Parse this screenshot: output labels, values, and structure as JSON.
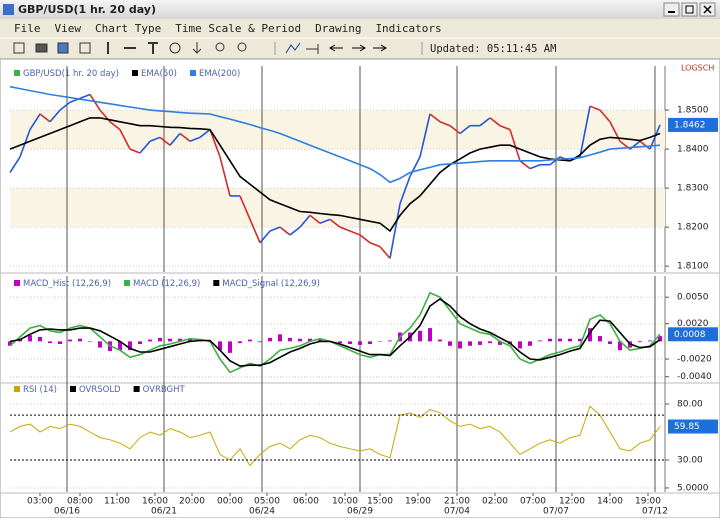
{
  "window": {
    "title": "GBP/USD(1 hr. 20 day)",
    "menu": [
      "File",
      "View",
      "Chart Type",
      "Time Scale & Period",
      "Drawing",
      "Indicators"
    ],
    "updated": "Updated: 05:11:45 AM"
  },
  "chart_data": [
    {
      "type": "line",
      "top_right_label": "LOGSCH",
      "stripes": true,
      "series": [
        {
          "name": "GBP/USD(1 hr. 20 day)",
          "color": "#2456d6",
          "down_color": "#d42a2a",
          "legend_color": "#3cb043",
          "values": [
            1.834,
            1.838,
            1.845,
            1.849,
            1.847,
            1.85,
            1.852,
            1.853,
            1.854,
            1.85,
            1.847,
            1.845,
            1.84,
            1.839,
            1.842,
            1.843,
            1.841,
            1.844,
            1.842,
            1.843,
            1.845,
            1.838,
            1.828,
            1.828,
            1.822,
            1.816,
            1.819,
            1.82,
            1.818,
            1.82,
            1.823,
            1.821,
            1.822,
            1.82,
            1.819,
            1.818,
            1.816,
            1.815,
            1.812,
            1.826,
            1.833,
            1.838,
            1.849,
            1.847,
            1.846,
            1.844,
            1.846,
            1.846,
            1.848,
            1.846,
            1.845,
            1.837,
            1.835,
            1.836,
            1.836,
            1.838,
            1.837,
            1.838,
            1.851,
            1.85,
            1.847,
            1.842,
            1.84,
            1.842,
            1.84,
            1.8462
          ]
        },
        {
          "name": "EMA(50)",
          "color": "#000000",
          "values": [
            1.84,
            1.841,
            1.842,
            1.843,
            1.844,
            1.845,
            1.846,
            1.847,
            1.848,
            1.848,
            1.8475,
            1.847,
            1.8465,
            1.846,
            1.846,
            1.8458,
            1.8456,
            1.8455,
            1.8453,
            1.8452,
            1.845,
            1.841,
            1.837,
            1.833,
            1.831,
            1.829,
            1.827,
            1.826,
            1.825,
            1.824,
            1.8238,
            1.8235,
            1.8232,
            1.823,
            1.8225,
            1.822,
            1.8215,
            1.821,
            1.819,
            1.823,
            1.826,
            1.828,
            1.831,
            1.834,
            1.836,
            1.8375,
            1.839,
            1.84,
            1.8405,
            1.841,
            1.841,
            1.84,
            1.839,
            1.838,
            1.8375,
            1.8372,
            1.837,
            1.8385,
            1.841,
            1.8425,
            1.843,
            1.8428,
            1.8425,
            1.8422,
            1.843,
            1.844
          ]
        },
        {
          "name": "EMA(200)",
          "color": "#2f7fe0",
          "values": [
            1.856,
            1.8555,
            1.855,
            1.8545,
            1.854,
            1.8536,
            1.8532,
            1.8528,
            1.8524,
            1.852,
            1.8516,
            1.8512,
            1.8508,
            1.8504,
            1.85,
            1.8498,
            1.8496,
            1.8494,
            1.8492,
            1.8491,
            1.849,
            1.8483,
            1.8477,
            1.847,
            1.8463,
            1.8455,
            1.8448,
            1.844,
            1.843,
            1.842,
            1.841,
            1.84,
            1.839,
            1.838,
            1.837,
            1.836,
            1.835,
            1.8335,
            1.8315,
            1.8325,
            1.834,
            1.8347,
            1.8353,
            1.836,
            1.8362,
            1.8364,
            1.8366,
            1.8368,
            1.837,
            1.837,
            1.837,
            1.837,
            1.837,
            1.837,
            1.8372,
            1.8374,
            1.8376,
            1.8378,
            1.8385,
            1.8392,
            1.84,
            1.8402,
            1.8404,
            1.8406,
            1.8408,
            1.841
          ]
        }
      ],
      "ylim": [
        1.8085,
        1.8613
      ],
      "yticks": [
        {
          "value": 1.85,
          "label": "1.8500"
        },
        {
          "value": 1.84,
          "label": "1.8400"
        },
        {
          "value": 1.83,
          "label": "1.8300"
        },
        {
          "value": 1.82,
          "label": "1.8200"
        },
        {
          "value": 1.81,
          "label": "1.8100"
        }
      ],
      "last_value": {
        "value": 1.8462,
        "label": "1.8462"
      }
    },
    {
      "type": "line",
      "series": [
        {
          "name": "MACD_Hist (12,26,9)",
          "color": "#c000c0",
          "kind": "bar",
          "values": [
            -0.0005,
            0.0003,
            0.0007,
            0.0005,
            -0.0002,
            -0.0003,
            0.0002,
            0.0003,
            0,
            -0.0007,
            -0.0011,
            -0.001,
            -0.001,
            -0.0003,
            0.0002,
            0.0004,
            0.0003,
            0.0003,
            0.0003,
            0.0001,
            -0.0001,
            -0.001,
            -0.0013,
            -0.0002,
            0.0002,
            -0.0001,
            0.0004,
            0.0008,
            0.0004,
            0.0003,
            0.0003,
            0.0003,
            0,
            -0.0002,
            -0.0003,
            -0.0004,
            -0.0003,
            0,
            0.0001,
            0.001,
            0.001,
            0.0012,
            0.0015,
            0.0002,
            -0.0005,
            -0.0008,
            -0.0005,
            -0.0004,
            -0.0002,
            -0.0004,
            -0.0003,
            -0.0008,
            -0.0005,
            0.0001,
            0.0003,
            0.0003,
            0.0003,
            0.0003,
            0.0015,
            0.0006,
            -0.0003,
            -0.001,
            -0.0007,
            -0.0001,
            0.0001,
            0.0006
          ]
        },
        {
          "name": "MACD (12,26,9)",
          "color": "#3cb043",
          "values": [
            -0.0005,
            0.0005,
            0.0015,
            0.0018,
            0.0012,
            0.001,
            0.0015,
            0.0018,
            0.0015,
            0.0005,
            -0.0005,
            -0.001,
            -0.0018,
            -0.0015,
            -0.001,
            -0.0005,
            -0.0003,
            0,
            0.0003,
            0.0002,
            0,
            -0.002,
            -0.0035,
            -0.003,
            -0.0025,
            -0.0028,
            -0.002,
            -0.001,
            -0.0008,
            -0.0005,
            0,
            0.0003,
            0,
            -0.0005,
            -0.001,
            -0.0015,
            -0.0018,
            -0.0015,
            -0.0015,
            0.0005,
            0.0015,
            0.003,
            0.0055,
            0.005,
            0.0035,
            0.002,
            0.0015,
            0.001,
            0.0008,
            0,
            -0.0005,
            -0.002,
            -0.0025,
            -0.002,
            -0.0015,
            -0.0012,
            -0.0008,
            -0.0005,
            0.0025,
            0.003,
            0.002,
            0,
            -0.001,
            -0.0008,
            -0.0005,
            0.0008
          ]
        },
        {
          "name": "MACD_Signal (12,26,9)",
          "color": "#000000",
          "values": [
            0,
            0.0002,
            0.0008,
            0.0013,
            0.0014,
            0.0013,
            0.0013,
            0.0015,
            0.0015,
            0.0012,
            0.0006,
            0,
            -0.0008,
            -0.0012,
            -0.0012,
            -0.0009,
            -0.0006,
            -0.0003,
            0,
            0.0001,
            0.0001,
            -0.001,
            -0.0022,
            -0.0028,
            -0.0027,
            -0.0027,
            -0.0024,
            -0.0018,
            -0.0012,
            -0.0008,
            -0.0003,
            0,
            0,
            -0.0003,
            -0.0007,
            -0.0011,
            -0.0015,
            -0.0015,
            -0.0016,
            -0.0005,
            0.0005,
            0.0018,
            0.004,
            0.0048,
            0.004,
            0.0028,
            0.002,
            0.0014,
            0.001,
            0.0004,
            -0.0002,
            -0.0012,
            -0.002,
            -0.0021,
            -0.0018,
            -0.0015,
            -0.0011,
            -0.0008,
            0.001,
            0.0024,
            0.0023,
            0.001,
            -0.0003,
            -0.0007,
            -0.0006,
            0.0002
          ]
        }
      ],
      "ylim": [
        -0.0046,
        0.0074
      ],
      "yticks": [
        {
          "value": 0.005,
          "label": "0.0050"
        },
        {
          "value": 0.002,
          "label": "0.0020"
        },
        {
          "value": -0.002,
          "label": "-0.0020"
        },
        {
          "value": -0.004,
          "label": "-0.0040"
        }
      ],
      "last_value": {
        "value": 0.0008,
        "label": "0.0008"
      }
    },
    {
      "type": "line",
      "series": [
        {
          "name": "RSI (14)",
          "color": "#c8a800",
          "values": [
            55,
            60,
            62,
            55,
            60,
            58,
            62,
            60,
            55,
            50,
            48,
            45,
            40,
            50,
            55,
            52,
            58,
            55,
            50,
            52,
            55,
            35,
            30,
            40,
            25,
            35,
            42,
            45,
            40,
            48,
            52,
            50,
            45,
            42,
            40,
            38,
            40,
            35,
            32,
            70,
            72,
            68,
            75,
            72,
            65,
            60,
            62,
            58,
            60,
            55,
            45,
            35,
            40,
            45,
            48,
            45,
            50,
            52,
            78,
            70,
            55,
            40,
            38,
            45,
            48,
            59.85
          ]
        },
        {
          "name": "OVRSOLD",
          "color": "#000000",
          "level": 30
        },
        {
          "name": "OVRBGHT",
          "color": "#000000",
          "level": 70
        }
      ],
      "ylim": [
        1.4,
        99.6
      ],
      "yticks": [
        {
          "value": 80,
          "label": "80.00"
        },
        {
          "value": 30,
          "label": "30.00"
        },
        {
          "value": 5,
          "label": "5.0000"
        }
      ],
      "last_value": {
        "value": 59.85,
        "label": "59.85"
      },
      "xlim": [
        0,
        65.5
      ],
      "xticks": [
        {
          "value": 3,
          "label": "03:00"
        },
        {
          "value": 7,
          "label": "08:00"
        },
        {
          "value": 10.7,
          "label": "11:00"
        },
        {
          "value": 14.5,
          "label": "16:00"
        },
        {
          "value": 18.2,
          "label": "20:00"
        },
        {
          "value": 22,
          "label": "00:00"
        },
        {
          "value": 25.7,
          "label": "05:00"
        },
        {
          "value": 29.6,
          "label": "06:00"
        },
        {
          "value": 33.5,
          "label": "10:00"
        },
        {
          "value": 37,
          "label": "15:00"
        },
        {
          "value": 40.8,
          "label": "19:00"
        },
        {
          "value": 44.7,
          "label": "21:00"
        },
        {
          "value": 48.5,
          "label": "02:00"
        },
        {
          "value": 52.3,
          "label": "07:00"
        },
        {
          "value": 56.2,
          "label": "12:00"
        },
        {
          "value": 60,
          "label": "14:00"
        },
        {
          "value": 63.8,
          "label": "19:00"
        }
      ],
      "date_ticks": [
        {
          "value": 5.7,
          "label": "06/16"
        },
        {
          "value": 15.4,
          "label": "06/21"
        },
        {
          "value": 25.2,
          "label": "06/24"
        },
        {
          "value": 35,
          "label": "06/29"
        },
        {
          "value": 44.7,
          "label": "07/04"
        },
        {
          "value": 54.6,
          "label": "07/07"
        },
        {
          "value": 64.5,
          "label": "07/12"
        }
      ]
    }
  ]
}
